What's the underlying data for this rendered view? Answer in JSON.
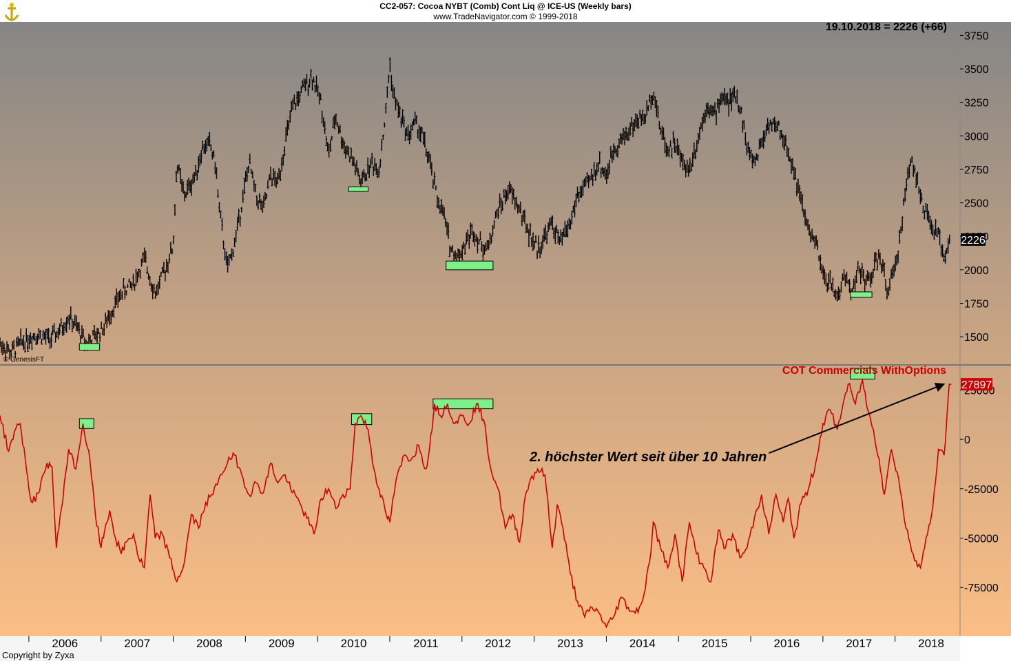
{
  "header": {
    "line1": "CC2-057:  Cocoa NYBT (Comb) Cont Liq @ ICE-US  (Weekly bars)",
    "line2": "www.TradeNavigator.com © 1999-2018"
  },
  "last_quote": "19.10.2018 = 2226 (+66)",
  "source_mark": "© GenesisFT",
  "copyright": "Copyright by Zyxa",
  "colors": {
    "price_bars": "#000000",
    "cot_line": "#cc0000",
    "highlight_box": "#7ef08a",
    "background_top": "#878787",
    "background_bottom": "#fbbe85"
  },
  "chart_data": [
    {
      "type": "bar",
      "title": "CC2-057:  Cocoa NYBT (Comb) Cont Liq @ ICE-US  (Weekly bars)",
      "series_style": "weekly OHLC bars (black)",
      "x_tick_labels": [
        "2006",
        "2007",
        "2008",
        "2009",
        "2010",
        "2011",
        "2012",
        "2013",
        "2014",
        "2015",
        "2016",
        "2017",
        "2018"
      ],
      "xlim": [
        2005.6,
        2018.9
      ],
      "ylim": [
        1300,
        3850
      ],
      "y_ticks": [
        1500,
        1750,
        2000,
        2250,
        2500,
        2750,
        3000,
        3250,
        3500,
        3750
      ],
      "y_tick_labels": [
        "1500",
        "1750",
        "2000",
        "2250",
        "2500",
        "2750",
        "3000",
        "3250",
        "3500",
        "3750"
      ],
      "last_value_label": "2226",
      "approx_close_points": [
        [
          2005.6,
          1450
        ],
        [
          2005.75,
          1380
        ],
        [
          2005.9,
          1460
        ],
        [
          2006.1,
          1520
        ],
        [
          2006.3,
          1480
        ],
        [
          2006.45,
          1560
        ],
        [
          2006.55,
          1650
        ],
        [
          2006.7,
          1540
        ],
        [
          2006.8,
          1450
        ],
        [
          2006.95,
          1520
        ],
        [
          2007.05,
          1580
        ],
        [
          2007.15,
          1700
        ],
        [
          2007.3,
          1840
        ],
        [
          2007.45,
          1900
        ],
        [
          2007.6,
          2080
        ],
        [
          2007.75,
          1820
        ],
        [
          2007.85,
          1950
        ],
        [
          2008.0,
          2180
        ],
        [
          2008.05,
          2800
        ],
        [
          2008.15,
          2550
        ],
        [
          2008.3,
          2700
        ],
        [
          2008.4,
          2900
        ],
        [
          2008.5,
          2950
        ],
        [
          2008.58,
          2800
        ],
        [
          2008.65,
          2400
        ],
        [
          2008.75,
          2000
        ],
        [
          2008.85,
          2200
        ],
        [
          2008.95,
          2500
        ],
        [
          2009.05,
          2800
        ],
        [
          2009.15,
          2550
        ],
        [
          2009.25,
          2450
        ],
        [
          2009.35,
          2700
        ],
        [
          2009.45,
          2650
        ],
        [
          2009.55,
          2950
        ],
        [
          2009.65,
          3200
        ],
        [
          2009.8,
          3350
        ],
        [
          2009.92,
          3450
        ],
        [
          2010.05,
          3250
        ],
        [
          2010.15,
          2850
        ],
        [
          2010.25,
          3150
        ],
        [
          2010.35,
          2950
        ],
        [
          2010.5,
          2800
        ],
        [
          2010.6,
          2650
        ],
        [
          2010.75,
          2800
        ],
        [
          2010.85,
          2750
        ],
        [
          2010.95,
          3200
        ],
        [
          2011.0,
          3550
        ],
        [
          2011.05,
          3300
        ],
        [
          2011.15,
          3150
        ],
        [
          2011.25,
          3000
        ],
        [
          2011.35,
          3100
        ],
        [
          2011.45,
          3000
        ],
        [
          2011.55,
          2800
        ],
        [
          2011.65,
          2550
        ],
        [
          2011.75,
          2400
        ],
        [
          2011.85,
          2150
        ],
        [
          2011.95,
          2100
        ],
        [
          2012.05,
          2200
        ],
        [
          2012.15,
          2300
        ],
        [
          2012.25,
          2200
        ],
        [
          2012.35,
          2150
        ],
        [
          2012.5,
          2450
        ],
        [
          2012.65,
          2600
        ],
        [
          2012.8,
          2450
        ],
        [
          2012.95,
          2250
        ],
        [
          2013.05,
          2150
        ],
        [
          2013.15,
          2250
        ],
        [
          2013.25,
          2350
        ],
        [
          2013.35,
          2200
        ],
        [
          2013.5,
          2350
        ],
        [
          2013.6,
          2550
        ],
        [
          2013.75,
          2650
        ],
        [
          2013.9,
          2800
        ],
        [
          2014.0,
          2700
        ],
        [
          2014.1,
          2900
        ],
        [
          2014.25,
          3000
        ],
        [
          2014.4,
          3100
        ],
        [
          2014.55,
          3150
        ],
        [
          2014.65,
          3350
        ],
        [
          2014.75,
          3050
        ],
        [
          2014.85,
          2900
        ],
        [
          2014.95,
          2950
        ],
        [
          2015.05,
          2800
        ],
        [
          2015.15,
          2750
        ],
        [
          2015.3,
          3050
        ],
        [
          2015.4,
          3250
        ],
        [
          2015.5,
          3150
        ],
        [
          2015.6,
          3300
        ],
        [
          2015.7,
          3250
        ],
        [
          2015.8,
          3300
        ],
        [
          2015.88,
          3150
        ],
        [
          2015.95,
          2900
        ],
        [
          2016.05,
          2800
        ],
        [
          2016.15,
          2950
        ],
        [
          2016.25,
          3100
        ],
        [
          2016.4,
          3050
        ],
        [
          2016.5,
          2900
        ],
        [
          2016.6,
          2750
        ],
        [
          2016.7,
          2500
        ],
        [
          2016.8,
          2300
        ],
        [
          2016.9,
          2200
        ],
        [
          2017.0,
          1950
        ],
        [
          2017.1,
          1900
        ],
        [
          2017.2,
          1800
        ],
        [
          2017.3,
          1950
        ],
        [
          2017.4,
          1850
        ],
        [
          2017.5,
          2000
        ],
        [
          2017.6,
          1900
        ],
        [
          2017.7,
          2000
        ],
        [
          2017.78,
          2100
        ],
        [
          2017.85,
          1950
        ],
        [
          2017.9,
          1850
        ],
        [
          2018.0,
          2000
        ],
        [
          2018.08,
          2300
        ],
        [
          2018.15,
          2600
        ],
        [
          2018.22,
          2850
        ],
        [
          2018.3,
          2700
        ],
        [
          2018.38,
          2450
        ],
        [
          2018.45,
          2400
        ],
        [
          2018.52,
          2300
        ],
        [
          2018.6,
          2250
        ],
        [
          2018.68,
          2100
        ],
        [
          2018.75,
          2226
        ]
      ],
      "highlight_boxes": [
        {
          "x": [
            2006.7,
            2006.98
          ],
          "y": [
            1400,
            1450
          ]
        },
        {
          "x": [
            2010.43,
            2010.7
          ],
          "y": [
            2585,
            2620
          ]
        },
        {
          "x": [
            2011.78,
            2012.43
          ],
          "y": [
            2000,
            2065
          ]
        },
        {
          "x": [
            2017.38,
            2017.68
          ],
          "y": [
            1795,
            1835
          ]
        }
      ]
    },
    {
      "type": "line",
      "title": "COT Commercials WithOptions",
      "x_tick_labels": [
        "2006",
        "2007",
        "2008",
        "2009",
        "2010",
        "2011",
        "2012",
        "2013",
        "2014",
        "2015",
        "2016",
        "2017",
        "2018"
      ],
      "xlim": [
        2005.6,
        2018.9
      ],
      "ylim": [
        -99000,
        37000
      ],
      "y_ticks": [
        -75000,
        -50000,
        -25000,
        0,
        25000
      ],
      "y_tick_labels": [
        "-75000",
        "-50000",
        "-25000",
        "0",
        "25000"
      ],
      "last_value_label": "27897",
      "approx_points": [
        [
          2005.6,
          12000
        ],
        [
          2005.72,
          -6000
        ],
        [
          2005.8,
          4000
        ],
        [
          2005.88,
          8000
        ],
        [
          2005.95,
          -10000
        ],
        [
          2006.0,
          -25000
        ],
        [
          2006.05,
          -32000
        ],
        [
          2006.15,
          -26000
        ],
        [
          2006.25,
          -12000
        ],
        [
          2006.32,
          -14000
        ],
        [
          2006.38,
          -55000
        ],
        [
          2006.45,
          -35000
        ],
        [
          2006.55,
          -5000
        ],
        [
          2006.65,
          -15000
        ],
        [
          2006.75,
          8000
        ],
        [
          2006.85,
          -12000
        ],
        [
          2006.92,
          -38000
        ],
        [
          2007.0,
          -55000
        ],
        [
          2007.05,
          -46000
        ],
        [
          2007.12,
          -36000
        ],
        [
          2007.2,
          -50000
        ],
        [
          2007.28,
          -58000
        ],
        [
          2007.35,
          -52000
        ],
        [
          2007.45,
          -48000
        ],
        [
          2007.52,
          -60000
        ],
        [
          2007.6,
          -65000
        ],
        [
          2007.68,
          -28000
        ],
        [
          2007.75,
          -50000
        ],
        [
          2007.85,
          -48000
        ],
        [
          2007.95,
          -60000
        ],
        [
          2008.05,
          -72000
        ],
        [
          2008.15,
          -63000
        ],
        [
          2008.25,
          -38000
        ],
        [
          2008.35,
          -45000
        ],
        [
          2008.45,
          -32000
        ],
        [
          2008.55,
          -28000
        ],
        [
          2008.65,
          -18000
        ],
        [
          2008.75,
          -12000
        ],
        [
          2008.85,
          -8000
        ],
        [
          2008.95,
          -18000
        ],
        [
          2009.05,
          -28000
        ],
        [
          2009.15,
          -22000
        ],
        [
          2009.25,
          -27000
        ],
        [
          2009.35,
          -12000
        ],
        [
          2009.45,
          -22000
        ],
        [
          2009.55,
          -18000
        ],
        [
          2009.65,
          -27000
        ],
        [
          2009.75,
          -32000
        ],
        [
          2009.85,
          -40000
        ],
        [
          2009.95,
          -48000
        ],
        [
          2010.05,
          -30000
        ],
        [
          2010.15,
          -25000
        ],
        [
          2010.25,
          -35000
        ],
        [
          2010.35,
          -28000
        ],
        [
          2010.45,
          -25000
        ],
        [
          2010.52,
          8000
        ],
        [
          2010.6,
          12000
        ],
        [
          2010.7,
          5000
        ],
        [
          2010.78,
          -15000
        ],
        [
          2010.85,
          -25000
        ],
        [
          2010.95,
          -38000
        ],
        [
          2011.0,
          -42000
        ],
        [
          2011.08,
          -22000
        ],
        [
          2011.2,
          -8000
        ],
        [
          2011.3,
          -10000
        ],
        [
          2011.4,
          -3000
        ],
        [
          2011.5,
          -15000
        ],
        [
          2011.55,
          -5000
        ],
        [
          2011.62,
          18000
        ],
        [
          2011.7,
          12000
        ],
        [
          2011.8,
          18000
        ],
        [
          2011.9,
          8000
        ],
        [
          2012.0,
          12000
        ],
        [
          2012.1,
          8000
        ],
        [
          2012.2,
          18000
        ],
        [
          2012.3,
          10000
        ],
        [
          2012.4,
          -15000
        ],
        [
          2012.5,
          -25000
        ],
        [
          2012.6,
          -45000
        ],
        [
          2012.7,
          -38000
        ],
        [
          2012.8,
          -52000
        ],
        [
          2012.88,
          -28000
        ],
        [
          2012.95,
          -20000
        ],
        [
          2013.05,
          -15000
        ],
        [
          2013.15,
          -18000
        ],
        [
          2013.25,
          -55000
        ],
        [
          2013.32,
          -33000
        ],
        [
          2013.4,
          -45000
        ],
        [
          2013.5,
          -68000
        ],
        [
          2013.6,
          -82000
        ],
        [
          2013.7,
          -90000
        ],
        [
          2013.8,
          -85000
        ],
        [
          2013.9,
          -88000
        ],
        [
          2014.0,
          -95000
        ],
        [
          2014.1,
          -90000
        ],
        [
          2014.2,
          -80000
        ],
        [
          2014.3,
          -85000
        ],
        [
          2014.4,
          -88000
        ],
        [
          2014.5,
          -82000
        ],
        [
          2014.6,
          -62000
        ],
        [
          2014.65,
          -42000
        ],
        [
          2014.75,
          -55000
        ],
        [
          2014.85,
          -65000
        ],
        [
          2014.95,
          -48000
        ],
        [
          2015.05,
          -72000
        ],
        [
          2015.15,
          -42000
        ],
        [
          2015.25,
          -58000
        ],
        [
          2015.35,
          -65000
        ],
        [
          2015.45,
          -72000
        ],
        [
          2015.55,
          -46000
        ],
        [
          2015.65,
          -55000
        ],
        [
          2015.75,
          -48000
        ],
        [
          2015.85,
          -60000
        ],
        [
          2015.95,
          -55000
        ],
        [
          2016.05,
          -40000
        ],
        [
          2016.15,
          -28000
        ],
        [
          2016.25,
          -48000
        ],
        [
          2016.35,
          -28000
        ],
        [
          2016.45,
          -42000
        ],
        [
          2016.52,
          -30000
        ],
        [
          2016.6,
          -50000
        ],
        [
          2016.7,
          -32000
        ],
        [
          2016.8,
          -25000
        ],
        [
          2016.9,
          -12000
        ],
        [
          2017.0,
          8000
        ],
        [
          2017.1,
          15000
        ],
        [
          2017.2,
          5000
        ],
        [
          2017.28,
          18000
        ],
        [
          2017.35,
          28000
        ],
        [
          2017.45,
          18000
        ],
        [
          2017.55,
          30000
        ],
        [
          2017.62,
          15000
        ],
        [
          2017.7,
          5000
        ],
        [
          2017.78,
          -10000
        ],
        [
          2017.85,
          -28000
        ],
        [
          2017.95,
          -5000
        ],
        [
          2018.05,
          -20000
        ],
        [
          2018.15,
          -45000
        ],
        [
          2018.25,
          -58000
        ],
        [
          2018.35,
          -65000
        ],
        [
          2018.45,
          -48000
        ],
        [
          2018.52,
          -35000
        ],
        [
          2018.6,
          -5000
        ],
        [
          2018.68,
          -8000
        ],
        [
          2018.75,
          27897
        ]
      ],
      "highlight_boxes": [
        {
          "x": [
            2006.7,
            2006.9
          ],
          "y": [
            5500,
            10500
          ]
        },
        {
          "x": [
            2010.47,
            2010.75
          ],
          "y": [
            7500,
            13000
          ]
        },
        {
          "x": [
            2011.6,
            2012.43
          ],
          "y": [
            15500,
            20500
          ]
        },
        {
          "x": [
            2017.38,
            2017.72
          ],
          "y": [
            30500,
            36000
          ]
        }
      ],
      "annotation": {
        "text": "2. höchster Wert seit über 10 Jahren",
        "arrow_from": [
          2016.25,
          -7000
        ],
        "arrow_to": [
          2018.68,
          28000
        ]
      }
    }
  ]
}
